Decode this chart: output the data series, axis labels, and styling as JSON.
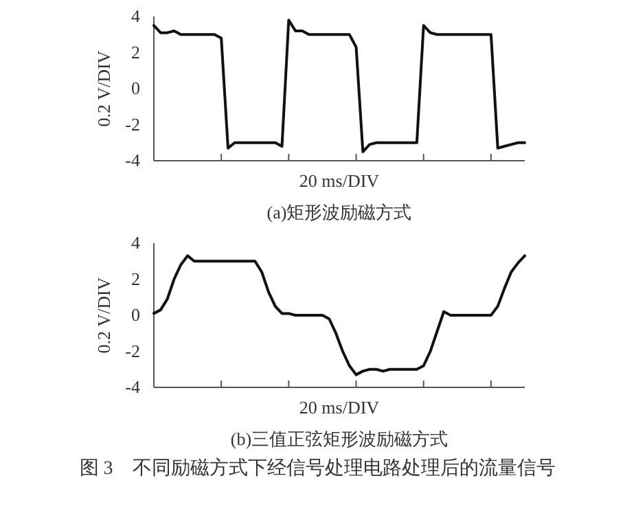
{
  "chart_data": [
    {
      "type": "line",
      "title": "(a)矩形波励磁方式",
      "xlabel": "20 ms/DIV",
      "ylabel": "0.2 V/DIV",
      "categories": [
        null,
        null,
        null,
        null,
        null,
        null,
        null,
        null,
        null,
        null,
        null,
        null,
        null,
        null,
        null,
        null,
        null,
        null,
        null,
        null,
        null,
        null,
        null,
        null,
        null,
        null,
        null,
        null,
        null,
        null,
        null,
        null,
        null,
        null,
        null,
        null,
        null,
        null,
        null,
        null,
        null,
        null,
        null,
        null,
        null,
        null,
        null,
        null,
        null,
        null,
        null,
        null,
        null,
        null,
        null,
        null
      ],
      "ylim": [
        -4,
        4
      ],
      "yticks": [
        -4,
        -2,
        0,
        2,
        4
      ],
      "series": [
        {
          "color": "#111111",
          "values": [
            3.5,
            3.1,
            3.1,
            3.2,
            3.0,
            3.0,
            3.0,
            3.0,
            3.0,
            3.0,
            2.8,
            -3.3,
            -3.0,
            -3.0,
            -3.0,
            -3.0,
            -3.0,
            -3.0,
            -3.0,
            -3.2,
            3.8,
            3.2,
            3.2,
            3.0,
            3.0,
            3.0,
            3.0,
            3.0,
            3.0,
            3.0,
            2.3,
            -3.5,
            -3.1,
            -3.0,
            -3.0,
            -3.0,
            -3.0,
            -3.0,
            -3.0,
            -3.0,
            3.5,
            3.1,
            3.0,
            3.0,
            3.0,
            3.0,
            3.0,
            3.0,
            3.0,
            3.0,
            3.0,
            -3.3,
            -3.2,
            -3.1,
            -3.0,
            -3.0
          ]
        }
      ]
    },
    {
      "type": "line",
      "title": "(b)三值正弦矩形波励磁方式",
      "xlabel": "20 ms/DIV",
      "ylabel": "0.2 V/DIV",
      "categories": [
        null,
        null,
        null,
        null,
        null,
        null,
        null,
        null,
        null,
        null,
        null,
        null,
        null,
        null,
        null,
        null,
        null,
        null,
        null,
        null,
        null,
        null,
        null,
        null,
        null,
        null,
        null,
        null,
        null,
        null,
        null,
        null,
        null,
        null,
        null,
        null,
        null,
        null,
        null,
        null,
        null,
        null,
        null,
        null,
        null,
        null,
        null,
        null,
        null,
        null,
        null,
        null,
        null,
        null,
        null,
        null
      ],
      "ylim": [
        -4,
        4
      ],
      "yticks": [
        -4,
        -2,
        0,
        2,
        4
      ],
      "annotations": [
        "图 3　不同励磁方式下经信号处理电路处理后的流量信号"
      ],
      "series": [
        {
          "color": "#111111",
          "values": [
            0.1,
            0.3,
            0.9,
            2.0,
            2.8,
            3.3,
            3.0,
            3.0,
            3.0,
            3.0,
            3.0,
            3.0,
            3.0,
            3.0,
            3.0,
            3.0,
            2.4,
            1.3,
            0.5,
            0.1,
            0.1,
            0.0,
            0.0,
            0.0,
            0.0,
            0.0,
            -0.2,
            -1.0,
            -2.0,
            -2.8,
            -3.3,
            -3.1,
            -3.0,
            -3.0,
            -3.1,
            -3.0,
            -3.0,
            -3.0,
            -3.0,
            -3.0,
            -2.8,
            -2.0,
            -0.9,
            0.2,
            0.0,
            0.0,
            0.0,
            0.0,
            0.0,
            0.0,
            0.0,
            0.5,
            1.5,
            2.4,
            2.9,
            3.3
          ]
        }
      ]
    }
  ]
}
